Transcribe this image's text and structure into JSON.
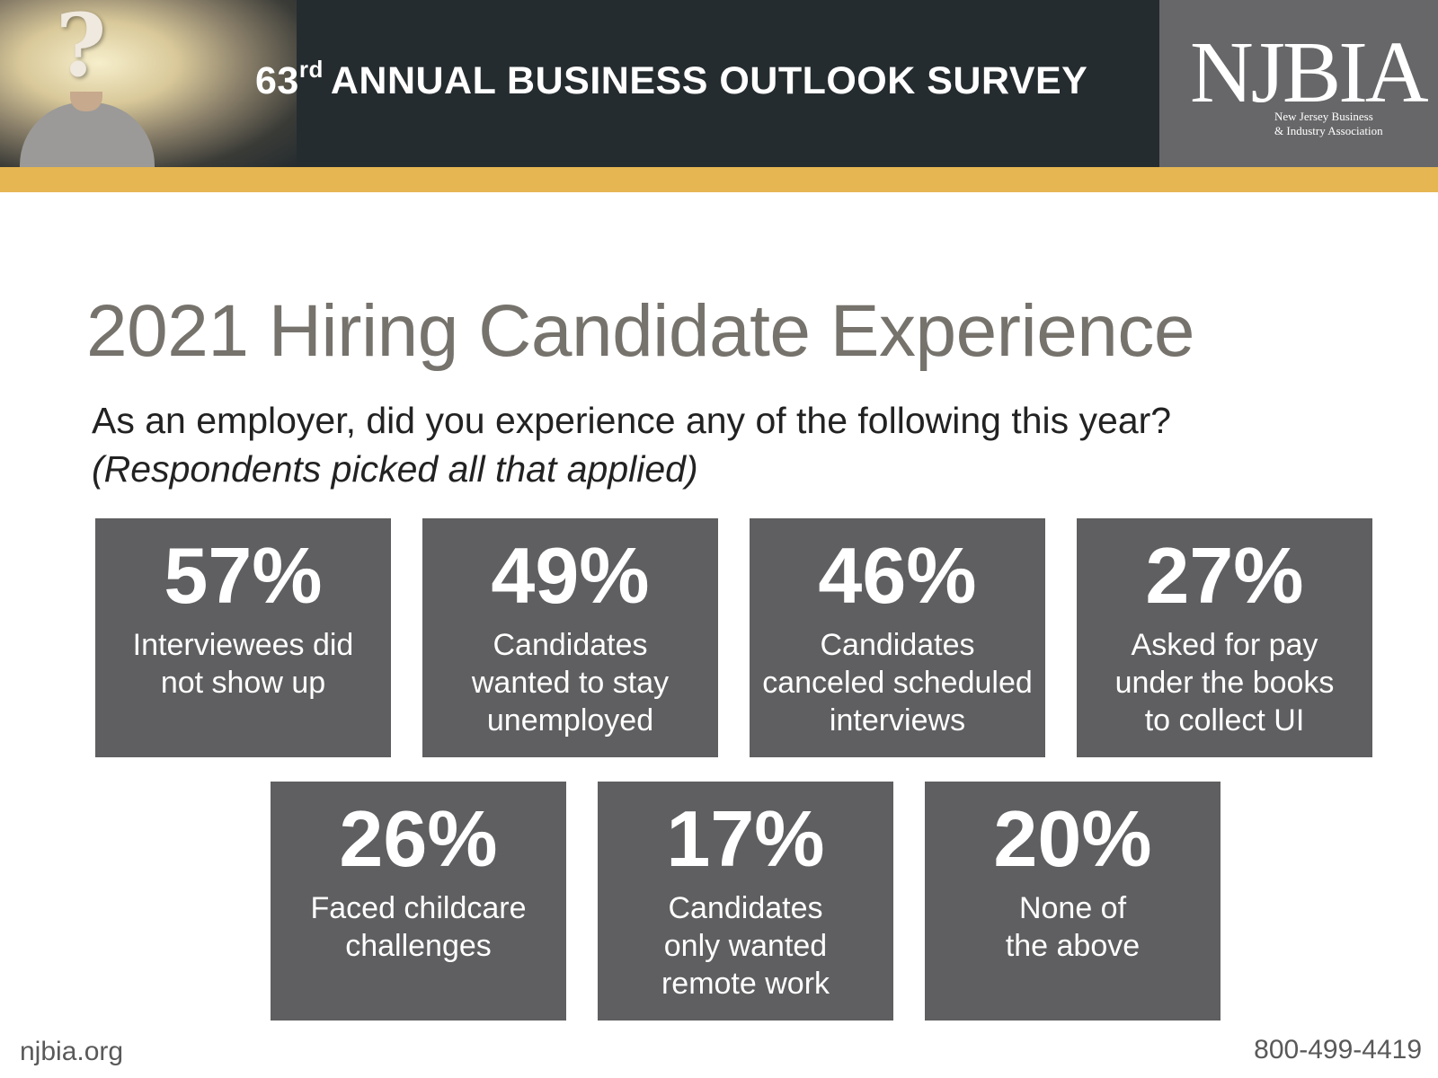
{
  "header": {
    "survey_number": "63",
    "survey_suffix": "rd",
    "survey_title": "ANNUAL BUSINESS OUTLOOK SURVEY",
    "logo": {
      "wordmark": "NJBIA",
      "sub_line1": "New Jersey Business",
      "sub_line2": "& Industry Association"
    }
  },
  "main": {
    "title": "2021 Hiring Candidate Experience",
    "question": "As an employer, did you experience any of the following this year?",
    "note": "(Respondents picked all that applied)",
    "stats": [
      {
        "percent": "57%",
        "label": "Interviewees did\nnot show up"
      },
      {
        "percent": "49%",
        "label": "Candidates\nwanted to stay\nunemployed"
      },
      {
        "percent": "46%",
        "label": "Candidates\ncanceled scheduled\ninterviews"
      },
      {
        "percent": "27%",
        "label": "Asked for pay\nunder the books\nto collect UI"
      },
      {
        "percent": "26%",
        "label": "Faced childcare\nchallenges"
      },
      {
        "percent": "17%",
        "label": "Candidates\nonly wanted\nremote work"
      },
      {
        "percent": "20%",
        "label": "None of\nthe above"
      }
    ]
  },
  "footer": {
    "website": "njbia.org",
    "phone": "800-499-4419"
  },
  "colors": {
    "header_bg": "#252c2f",
    "logo_bg": "#676769",
    "accent_gold": "#e5b652",
    "card_bg": "#5f5f61",
    "title_gray": "#76726c"
  }
}
